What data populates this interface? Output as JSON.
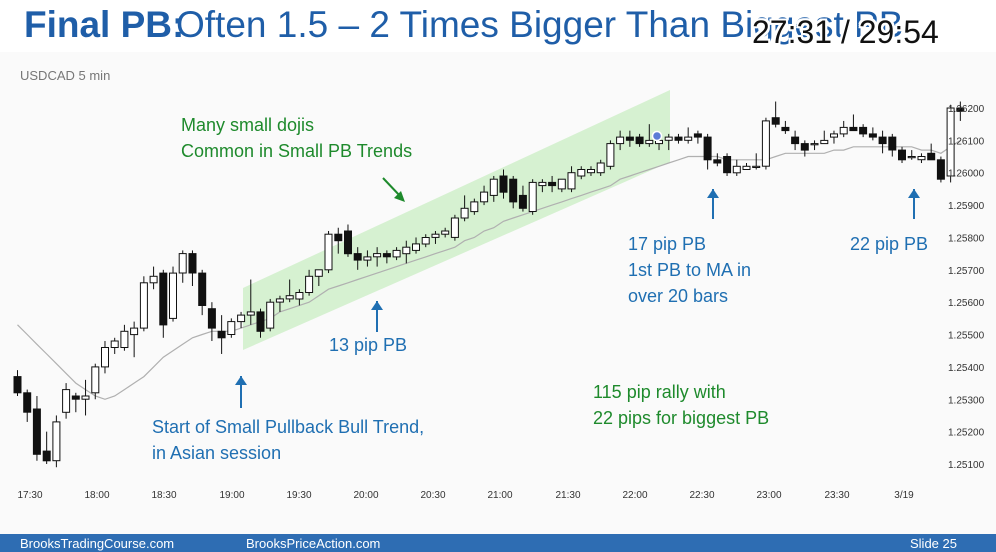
{
  "slide": {
    "title_bold": "Final PB:",
    "title_rest": "Often 1.5 – 2 Times Bigger Than Biggest PB",
    "timer": "27:31 / 29:54"
  },
  "footer": {
    "left": "BrooksTradingCourse.com",
    "center": "BrooksPriceAction.com",
    "right": "Slide  25"
  },
  "colors": {
    "title": "#1f5ea8",
    "annotation_blue": "#1f6fb2",
    "annotation_green": "#1e8a2c",
    "channel_fill": "#cfeec9",
    "bear_candle": "#111111",
    "bull_candle": "#ffffff",
    "moving_average": "#b0b0b0",
    "footer_bg": "#2e6db3"
  },
  "chart_data": {
    "type": "candlestick",
    "title": "USDCAD 5 min",
    "symbol": "USDCAD",
    "timeframe": "5 min",
    "ylim": [
      1.2505,
      1.2625
    ],
    "y_ticks": [
      "1.26200",
      "1.26100",
      "1.26000",
      "1.25900",
      "1.25800",
      "1.25700",
      "1.25600",
      "1.25500",
      "1.25400",
      "1.25300",
      "1.25200",
      "1.25100"
    ],
    "x_ticks": [
      "17:30",
      "18:00",
      "18:30",
      "19:00",
      "19:30",
      "20:00",
      "20:30",
      "21:00",
      "21:30",
      "22:00",
      "22:30",
      "23:00",
      "23:30",
      "3/19"
    ],
    "candles": [
      {
        "o": 1.2537,
        "h": 1.2539,
        "l": 1.2531,
        "c": 1.2532
      },
      {
        "o": 1.2532,
        "h": 1.2533,
        "l": 1.2523,
        "c": 1.2526
      },
      {
        "o": 1.2527,
        "h": 1.2531,
        "l": 1.2511,
        "c": 1.2513
      },
      {
        "o": 1.2514,
        "h": 1.252,
        "l": 1.251,
        "c": 1.2511
      },
      {
        "o": 1.2511,
        "h": 1.2525,
        "l": 1.2509,
        "c": 1.2523
      },
      {
        "o": 1.2526,
        "h": 1.2535,
        "l": 1.2524,
        "c": 1.2533
      },
      {
        "o": 1.2531,
        "h": 1.2532,
        "l": 1.2526,
        "c": 1.253
      },
      {
        "o": 1.253,
        "h": 1.2536,
        "l": 1.2525,
        "c": 1.2531
      },
      {
        "o": 1.2532,
        "h": 1.2541,
        "l": 1.253,
        "c": 1.254
      },
      {
        "o": 1.254,
        "h": 1.2548,
        "l": 1.2538,
        "c": 1.2546
      },
      {
        "o": 1.2546,
        "h": 1.2549,
        "l": 1.2544,
        "c": 1.2548
      },
      {
        "o": 1.2546,
        "h": 1.2553,
        "l": 1.2545,
        "c": 1.2551
      },
      {
        "o": 1.255,
        "h": 1.2554,
        "l": 1.2543,
        "c": 1.2552
      },
      {
        "o": 1.2552,
        "h": 1.2568,
        "l": 1.2551,
        "c": 1.2566
      },
      {
        "o": 1.2566,
        "h": 1.2571,
        "l": 1.2564,
        "c": 1.2568
      },
      {
        "o": 1.2569,
        "h": 1.257,
        "l": 1.2549,
        "c": 1.2553
      },
      {
        "o": 1.2555,
        "h": 1.2571,
        "l": 1.2554,
        "c": 1.2569
      },
      {
        "o": 1.2569,
        "h": 1.2576,
        "l": 1.2566,
        "c": 1.2575
      },
      {
        "o": 1.2575,
        "h": 1.2576,
        "l": 1.2565,
        "c": 1.2569
      },
      {
        "o": 1.2569,
        "h": 1.257,
        "l": 1.2556,
        "c": 1.2559
      },
      {
        "o": 1.2558,
        "h": 1.256,
        "l": 1.2548,
        "c": 1.2552
      },
      {
        "o": 1.2551,
        "h": 1.2556,
        "l": 1.2544,
        "c": 1.2549
      },
      {
        "o": 1.255,
        "h": 1.2555,
        "l": 1.2549,
        "c": 1.2554
      },
      {
        "o": 1.2554,
        "h": 1.2557,
        "l": 1.2552,
        "c": 1.2556
      },
      {
        "o": 1.2556,
        "h": 1.2567,
        "l": 1.2553,
        "c": 1.2557
      },
      {
        "o": 1.2557,
        "h": 1.2558,
        "l": 1.2549,
        "c": 1.2551
      },
      {
        "o": 1.2552,
        "h": 1.2561,
        "l": 1.2551,
        "c": 1.256
      },
      {
        "o": 1.256,
        "h": 1.2562,
        "l": 1.2557,
        "c": 1.2561
      },
      {
        "o": 1.2561,
        "h": 1.2567,
        "l": 1.256,
        "c": 1.2562
      },
      {
        "o": 1.2561,
        "h": 1.2564,
        "l": 1.2559,
        "c": 1.2563
      },
      {
        "o": 1.2563,
        "h": 1.257,
        "l": 1.2562,
        "c": 1.2568
      },
      {
        "o": 1.2568,
        "h": 1.257,
        "l": 1.2565,
        "c": 1.257
      },
      {
        "o": 1.257,
        "h": 1.2582,
        "l": 1.2569,
        "c": 1.2581
      },
      {
        "o": 1.2581,
        "h": 1.2583,
        "l": 1.2575,
        "c": 1.2579
      },
      {
        "o": 1.2582,
        "h": 1.2584,
        "l": 1.2574,
        "c": 1.2575
      },
      {
        "o": 1.2575,
        "h": 1.2577,
        "l": 1.257,
        "c": 1.2573
      },
      {
        "o": 1.2573,
        "h": 1.2576,
        "l": 1.2571,
        "c": 1.2574
      },
      {
        "o": 1.2574,
        "h": 1.2577,
        "l": 1.2571,
        "c": 1.2575
      },
      {
        "o": 1.2575,
        "h": 1.2576,
        "l": 1.2572,
        "c": 1.2574
      },
      {
        "o": 1.2574,
        "h": 1.2577,
        "l": 1.2573,
        "c": 1.2576
      },
      {
        "o": 1.2575,
        "h": 1.2579,
        "l": 1.2572,
        "c": 1.2577
      },
      {
        "o": 1.2576,
        "h": 1.258,
        "l": 1.2575,
        "c": 1.2578
      },
      {
        "o": 1.2578,
        "h": 1.2581,
        "l": 1.2577,
        "c": 1.258
      },
      {
        "o": 1.258,
        "h": 1.2582,
        "l": 1.2578,
        "c": 1.2581
      },
      {
        "o": 1.2581,
        "h": 1.2583,
        "l": 1.258,
        "c": 1.2582
      },
      {
        "o": 1.258,
        "h": 1.2587,
        "l": 1.2579,
        "c": 1.2586
      },
      {
        "o": 1.2586,
        "h": 1.2593,
        "l": 1.2585,
        "c": 1.2589
      },
      {
        "o": 1.2588,
        "h": 1.2592,
        "l": 1.2587,
        "c": 1.2591
      },
      {
        "o": 1.2591,
        "h": 1.2596,
        "l": 1.259,
        "c": 1.2594
      },
      {
        "o": 1.2593,
        "h": 1.2599,
        "l": 1.2591,
        "c": 1.2598
      },
      {
        "o": 1.2599,
        "h": 1.2601,
        "l": 1.2592,
        "c": 1.2594
      },
      {
        "o": 1.2598,
        "h": 1.2599,
        "l": 1.2589,
        "c": 1.2591
      },
      {
        "o": 1.2593,
        "h": 1.2596,
        "l": 1.2588,
        "c": 1.2589
      },
      {
        "o": 1.2588,
        "h": 1.2598,
        "l": 1.2587,
        "c": 1.2597
      },
      {
        "o": 1.2596,
        "h": 1.2598,
        "l": 1.2594,
        "c": 1.2597
      },
      {
        "o": 1.2597,
        "h": 1.2599,
        "l": 1.2594,
        "c": 1.2596
      },
      {
        "o": 1.2595,
        "h": 1.2598,
        "l": 1.2594,
        "c": 1.2598
      },
      {
        "o": 1.2595,
        "h": 1.2602,
        "l": 1.2594,
        "c": 1.26
      },
      {
        "o": 1.2599,
        "h": 1.2602,
        "l": 1.2598,
        "c": 1.2601
      },
      {
        "o": 1.26,
        "h": 1.2602,
        "l": 1.2599,
        "c": 1.2601
      },
      {
        "o": 1.26,
        "h": 1.2604,
        "l": 1.2599,
        "c": 1.2603
      },
      {
        "o": 1.2602,
        "h": 1.261,
        "l": 1.2601,
        "c": 1.2609
      },
      {
        "o": 1.2609,
        "h": 1.2613,
        "l": 1.2607,
        "c": 1.2611
      },
      {
        "o": 1.2611,
        "h": 1.2613,
        "l": 1.2608,
        "c": 1.261
      },
      {
        "o": 1.2611,
        "h": 1.2612,
        "l": 1.2608,
        "c": 1.2609
      },
      {
        "o": 1.2609,
        "h": 1.2615,
        "l": 1.2608,
        "c": 1.261
      },
      {
        "o": 1.2609,
        "h": 1.2612,
        "l": 1.2607,
        "c": 1.261
      },
      {
        "o": 1.261,
        "h": 1.2612,
        "l": 1.2607,
        "c": 1.2611
      },
      {
        "o": 1.2611,
        "h": 1.2612,
        "l": 1.2609,
        "c": 1.261
      },
      {
        "o": 1.261,
        "h": 1.2614,
        "l": 1.2609,
        "c": 1.2611
      },
      {
        "o": 1.2612,
        "h": 1.2613,
        "l": 1.2609,
        "c": 1.2611
      },
      {
        "o": 1.2611,
        "h": 1.2612,
        "l": 1.2601,
        "c": 1.2604
      },
      {
        "o": 1.2604,
        "h": 1.2606,
        "l": 1.2602,
        "c": 1.2603
      },
      {
        "o": 1.2605,
        "h": 1.2606,
        "l": 1.2599,
        "c": 1.26
      },
      {
        "o": 1.26,
        "h": 1.2604,
        "l": 1.2599,
        "c": 1.2602
      },
      {
        "o": 1.2601,
        "h": 1.2603,
        "l": 1.2601,
        "c": 1.2602
      },
      {
        "o": 1.2602,
        "h": 1.2606,
        "l": 1.2601,
        "c": 1.2602
      },
      {
        "o": 1.2602,
        "h": 1.2617,
        "l": 1.2601,
        "c": 1.2616
      },
      {
        "o": 1.2617,
        "h": 1.2622,
        "l": 1.2614,
        "c": 1.2615
      },
      {
        "o": 1.2614,
        "h": 1.2616,
        "l": 1.2612,
        "c": 1.2613
      },
      {
        "o": 1.2611,
        "h": 1.2613,
        "l": 1.2607,
        "c": 1.2609
      },
      {
        "o": 1.2609,
        "h": 1.261,
        "l": 1.2605,
        "c": 1.2607
      },
      {
        "o": 1.2609,
        "h": 1.261,
        "l": 1.2607,
        "c": 1.2609
      },
      {
        "o": 1.2609,
        "h": 1.2613,
        "l": 1.2609,
        "c": 1.261
      },
      {
        "o": 1.2611,
        "h": 1.2613,
        "l": 1.2609,
        "c": 1.2612
      },
      {
        "o": 1.2612,
        "h": 1.2616,
        "l": 1.2611,
        "c": 1.2614
      },
      {
        "o": 1.2614,
        "h": 1.2618,
        "l": 1.2613,
        "c": 1.2613
      },
      {
        "o": 1.2614,
        "h": 1.2615,
        "l": 1.2611,
        "c": 1.2612
      },
      {
        "o": 1.2612,
        "h": 1.2614,
        "l": 1.261,
        "c": 1.2611
      },
      {
        "o": 1.2611,
        "h": 1.2613,
        "l": 1.2606,
        "c": 1.2609
      },
      {
        "o": 1.2611,
        "h": 1.2612,
        "l": 1.2605,
        "c": 1.2607
      },
      {
        "o": 1.2607,
        "h": 1.2608,
        "l": 1.2603,
        "c": 1.2604
      },
      {
        "o": 1.2605,
        "h": 1.2607,
        "l": 1.2604,
        "c": 1.2605
      },
      {
        "o": 1.2604,
        "h": 1.2606,
        "l": 1.2603,
        "c": 1.2605
      },
      {
        "o": 1.2606,
        "h": 1.2609,
        "l": 1.2605,
        "c": 1.2604
      },
      {
        "o": 1.2604,
        "h": 1.2605,
        "l": 1.2597,
        "c": 1.2598
      },
      {
        "o": 1.2599,
        "h": 1.2621,
        "l": 1.2597,
        "c": 1.262
      },
      {
        "o": 1.262,
        "h": 1.2622,
        "l": 1.2616,
        "c": 1.2619
      }
    ],
    "moving_average": [
      1.2553,
      1.255,
      1.2547,
      1.2544,
      1.2541,
      1.2538,
      1.2535,
      1.2533,
      1.2531,
      1.253,
      1.2531,
      1.2533,
      1.2535,
      1.2537,
      1.254,
      1.2543,
      1.2545,
      1.2547,
      1.2549,
      1.255,
      1.2551,
      1.2551,
      1.2551,
      1.2552,
      1.2553,
      1.2554,
      1.2555,
      1.2557,
      1.2558,
      1.2559,
      1.256,
      1.2562,
      1.2564,
      1.2565,
      1.2566,
      1.2567,
      1.2568,
      1.2569,
      1.257,
      1.2571,
      1.2572,
      1.2573,
      1.2574,
      1.2575,
      1.2576,
      1.2577,
      1.2579,
      1.258,
      1.2582,
      1.2583,
      1.2585,
      1.2586,
      1.2587,
      1.2588,
      1.2589,
      1.259,
      1.2591,
      1.2592,
      1.2593,
      1.2594,
      1.2595,
      1.2596,
      1.2598,
      1.2599,
      1.26,
      1.2601,
      1.2602,
      1.2603,
      1.2604,
      1.2605,
      1.2605,
      1.2605,
      1.2605,
      1.2604,
      1.2604,
      1.2604,
      1.2604,
      1.2604,
      1.2605,
      1.2606,
      1.2606,
      1.2606,
      1.2606,
      1.2606,
      1.2607,
      1.2607,
      1.2608,
      1.2608,
      1.2608,
      1.2608,
      1.2608,
      1.2608,
      1.2608,
      1.2607,
      1.2607,
      1.2606,
      1.2608,
      1.261
    ],
    "annotations": {
      "small_dojis": [
        "Many small dojis",
        "Common in Small PB Trends"
      ],
      "start": [
        "Start of Small Pullback Bull Trend,",
        "in Asian session"
      ],
      "pb13": [
        "13 pip PB"
      ],
      "pb17": [
        "17 pip PB",
        "1st PB to MA in",
        "over 20 bars"
      ],
      "pb22": [
        "22 pip PB"
      ],
      "rally": [
        "115 pip rally with",
        "22 pips for biggest PB"
      ]
    }
  }
}
